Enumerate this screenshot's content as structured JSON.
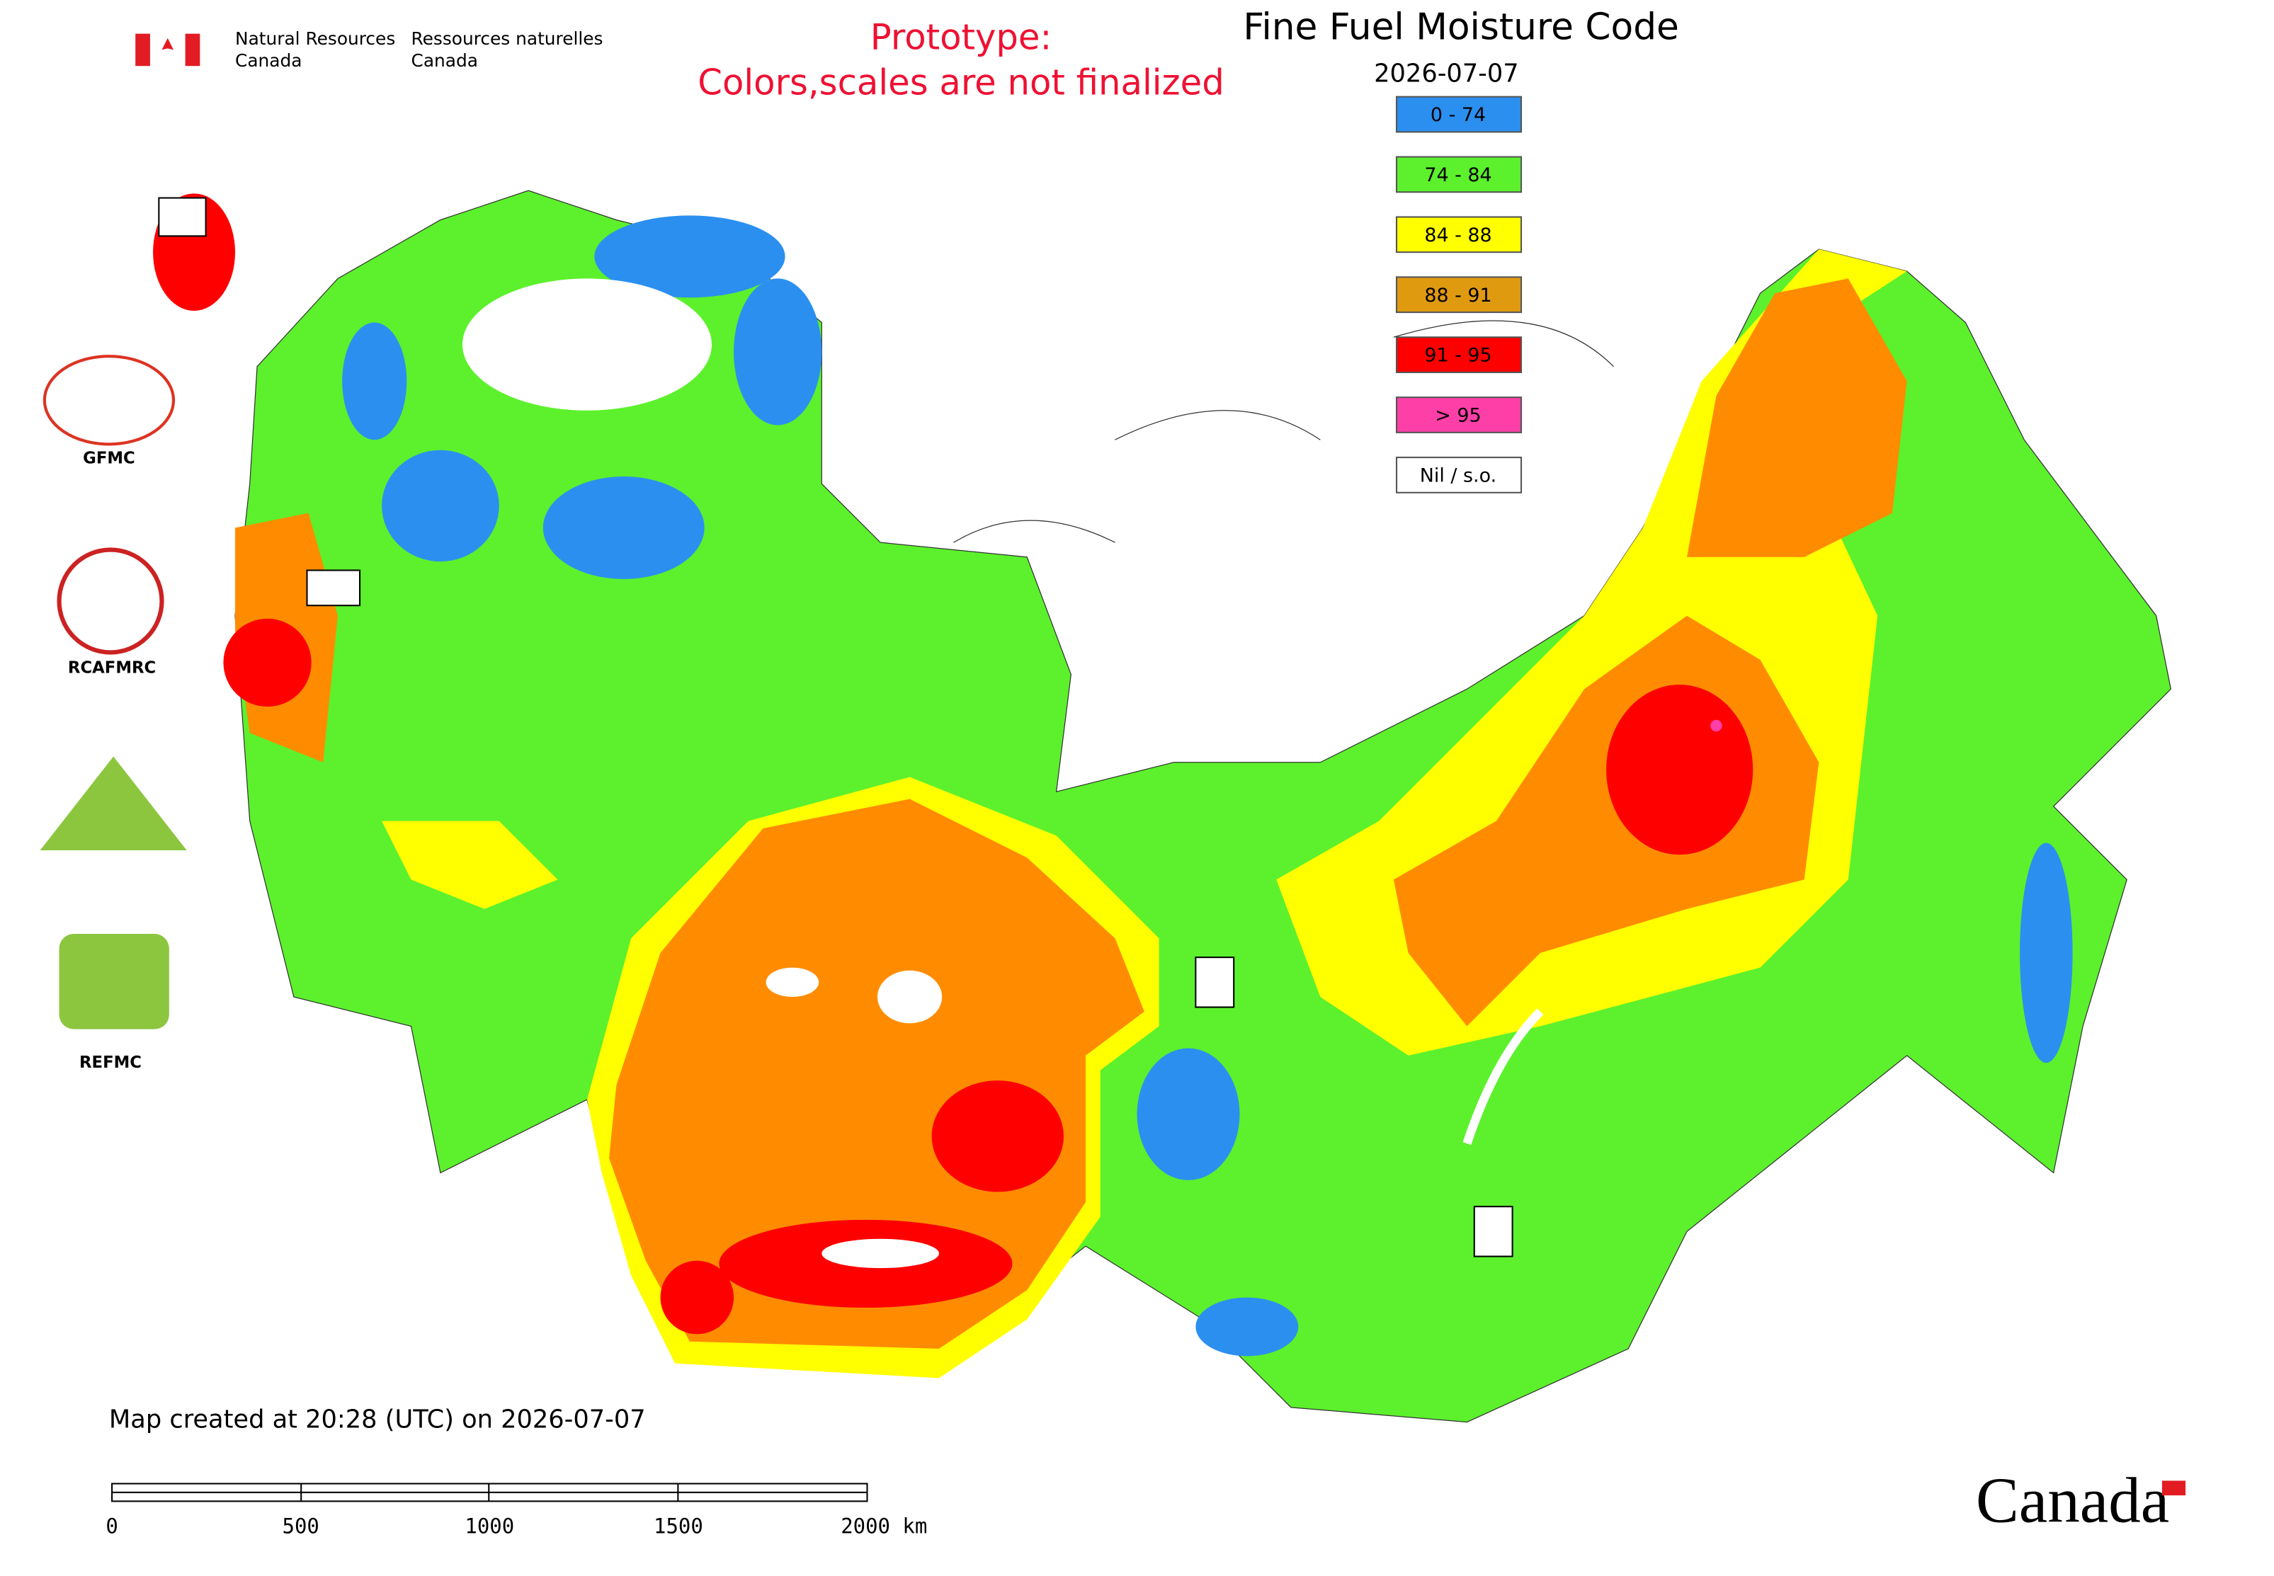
{
  "header": {
    "department_en": [
      "Natural Resources",
      "Canada"
    ],
    "department_fr": [
      "Ressources naturelles",
      "Canada"
    ]
  },
  "notice": [
    "Prototype:",
    "Colors,scales are not finalized"
  ],
  "title": "Fine Fuel Moisture Code",
  "date": "2026-07-07",
  "legend": [
    {
      "label": "0 - 74",
      "color": "#2b8ff0"
    },
    {
      "label": "74 - 84",
      "color": "#5cf12c"
    },
    {
      "label": "84 - 88",
      "color": "#ffff00"
    },
    {
      "label": "88 - 91",
      "color": "#e09a10"
    },
    {
      "label": "91 - 95",
      "color": "#ff0000"
    },
    {
      "label": "> 95",
      "color": "#ff3fa8"
    },
    {
      "label": "Nil / s.o.",
      "color": "#ffffff"
    }
  ],
  "logos": [
    "GFMC",
    "RCAFMRC",
    "REFMC"
  ],
  "created": "Map created at 20:28 (UTC) on 2026-07-07",
  "scale_bar": [
    "0",
    "500",
    "1000",
    "1500",
    "2000 km"
  ],
  "wordmark": "Canada"
}
